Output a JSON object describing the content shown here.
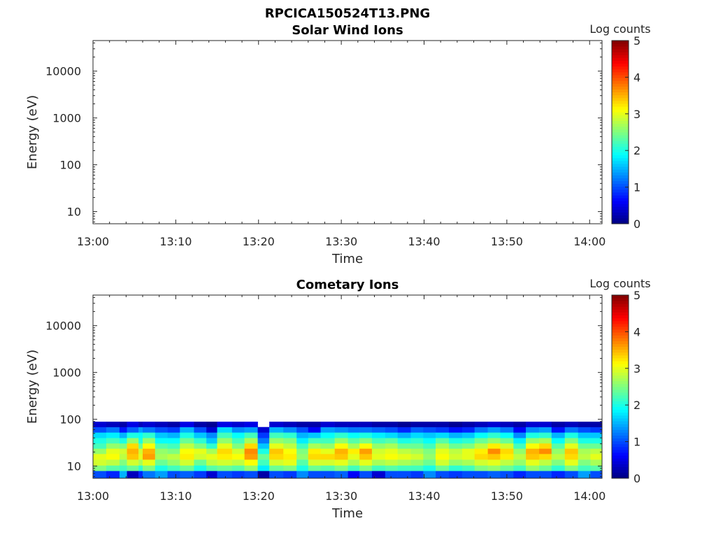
{
  "figure": {
    "title": "RPCICA150524T13.PNG"
  },
  "chart_data": [
    {
      "type": "heatmap",
      "title": "Solar Wind Ions",
      "xlabel": "Time",
      "ylabel": "Energy (eV)",
      "xticks": [
        "13:00",
        "13:10",
        "13:20",
        "13:30",
        "13:40",
        "13:50",
        "14:00"
      ],
      "xlim_minutes": [
        0,
        61.5
      ],
      "yscale": "log",
      "ylim": [
        5.5,
        45000
      ],
      "yticks": [
        10,
        100,
        1000,
        10000
      ],
      "yticklabels": [
        "10",
        "100",
        "1000",
        "10000"
      ],
      "colorbar": {
        "label": "Log counts",
        "range": [
          0,
          5
        ],
        "ticks": [
          "0",
          "1",
          "2",
          "3",
          "4",
          "5"
        ],
        "colormap": "jet"
      },
      "columns": []
    },
    {
      "type": "heatmap",
      "title": "Cometary Ions",
      "xlabel": "Time",
      "ylabel": "Energy (eV)",
      "xticks": [
        "13:00",
        "13:10",
        "13:20",
        "13:30",
        "13:40",
        "13:50",
        "14:00"
      ],
      "xlim_minutes": [
        0,
        61.5
      ],
      "yscale": "log",
      "ylim": [
        5.5,
        45000
      ],
      "yticks": [
        10,
        100,
        1000,
        10000
      ],
      "yticklabels": [
        "10",
        "100",
        "1000",
        "10000"
      ],
      "colorbar": {
        "label": "Log counts",
        "range": [
          0,
          5
        ],
        "ticks": [
          "0",
          "1",
          "2",
          "3",
          "4",
          "5"
        ],
        "colormap": "jet"
      },
      "energy_bins_eV": [
        7,
        9,
        12,
        16,
        21,
        27,
        35,
        46,
        60,
        78
      ],
      "columns": [
        {
          "t": 0.0,
          "levels": [
            1.0,
            2.5,
            2.9,
            3.0,
            2.6,
            2.2,
            2.0,
            1.7,
            1.0,
            0.4
          ]
        },
        {
          "t": 1.6,
          "levels": [
            0.8,
            2.3,
            2.8,
            3.1,
            3.0,
            2.6,
            2.2,
            1.8,
            1.2,
            0.3
          ]
        },
        {
          "t": 3.2,
          "levels": [
            1.5,
            2.2,
            2.5,
            2.8,
            2.9,
            2.5,
            2.0,
            1.5,
            0.7,
            0.2
          ]
        },
        {
          "t": 4.1,
          "levels": [
            0.3,
            2.4,
            2.9,
            3.4,
            3.5,
            3.3,
            2.6,
            2.0,
            1.1,
            0.5
          ]
        },
        {
          "t": 5.5,
          "levels": [
            0.8,
            2.1,
            2.7,
            3.0,
            2.9,
            2.4,
            2.0,
            1.9,
            1.4,
            0.3
          ]
        },
        {
          "t": 6.0,
          "levels": [
            1.2,
            2.5,
            3.0,
            3.6,
            3.5,
            3.1,
            2.6,
            2.1,
            1.2,
            0.4
          ]
        },
        {
          "t": 7.5,
          "levels": [
            1.4,
            2.0,
            2.4,
            2.7,
            2.6,
            2.3,
            1.9,
            1.6,
            1.0,
            0.3
          ]
        },
        {
          "t": 9.0,
          "levels": [
            1.0,
            2.2,
            2.6,
            2.8,
            2.5,
            2.2,
            1.9,
            1.5,
            0.9,
            0.2
          ]
        },
        {
          "t": 10.5,
          "levels": [
            1.1,
            2.4,
            2.9,
            3.2,
            3.1,
            2.8,
            2.4,
            2.0,
            1.5,
            0.5
          ]
        },
        {
          "t": 12.2,
          "levels": [
            0.9,
            2.0,
            2.4,
            2.9,
            3.0,
            2.5,
            2.1,
            1.6,
            1.0,
            0.2
          ]
        },
        {
          "t": 13.7,
          "levels": [
            0.4,
            2.3,
            2.8,
            3.0,
            2.7,
            2.1,
            1.6,
            1.3,
            0.4,
            0.1
          ]
        },
        {
          "t": 15.0,
          "levels": [
            1.0,
            2.4,
            2.9,
            3.2,
            3.3,
            3.0,
            2.6,
            2.2,
            1.7,
            0.5
          ]
        },
        {
          "t": 16.8,
          "levels": [
            0.9,
            2.3,
            2.8,
            3.1,
            2.9,
            2.5,
            2.2,
            1.9,
            1.3,
            0.4
          ]
        },
        {
          "t": 18.3,
          "levels": [
            1.0,
            2.6,
            3.1,
            3.6,
            3.7,
            3.3,
            2.7,
            2.2,
            1.4,
            0.5
          ]
        },
        {
          "t": 19.9,
          "levels": [
            0.2,
            1.8,
            2.2,
            2.4,
            2.0,
            1.6,
            1.2,
            0.9,
            0.4,
            -1
          ]
        },
        {
          "t": 21.3,
          "levels": [
            1.0,
            2.4,
            2.9,
            3.3,
            3.4,
            3.0,
            2.6,
            2.2,
            1.5,
            0.4
          ]
        },
        {
          "t": 23.0,
          "levels": [
            0.9,
            2.5,
            3.0,
            3.2,
            3.1,
            2.8,
            2.5,
            2.1,
            1.3,
            0.3
          ]
        },
        {
          "t": 24.6,
          "levels": [
            1.3,
            2.0,
            2.3,
            2.6,
            2.5,
            2.2,
            1.8,
            1.5,
            1.0,
            0.2
          ]
        },
        {
          "t": 26.0,
          "levels": [
            1.0,
            2.4,
            2.9,
            3.3,
            3.2,
            2.7,
            2.2,
            1.6,
            0.6,
            0.2
          ]
        },
        {
          "t": 27.5,
          "levels": [
            1.0,
            2.3,
            2.9,
            3.3,
            3.0,
            2.6,
            2.2,
            1.9,
            1.4,
            0.4
          ]
        },
        {
          "t": 29.2,
          "levels": [
            1.1,
            2.5,
            3.0,
            3.4,
            3.5,
            3.1,
            2.6,
            2.1,
            1.3,
            0.3
          ]
        },
        {
          "t": 30.8,
          "levels": [
            0.6,
            2.2,
            2.7,
            3.0,
            3.2,
            2.7,
            2.3,
            1.9,
            1.2,
            0.3
          ]
        },
        {
          "t": 32.2,
          "levels": [
            1.0,
            2.5,
            3.0,
            3.4,
            3.6,
            3.1,
            2.5,
            2.0,
            1.2,
            0.3
          ]
        },
        {
          "t": 33.7,
          "levels": [
            0.4,
            2.2,
            2.7,
            3.0,
            2.9,
            2.6,
            2.2,
            1.8,
            1.1,
            0.2
          ]
        },
        {
          "t": 35.3,
          "levels": [
            1.0,
            2.3,
            2.8,
            3.1,
            3.0,
            2.7,
            2.3,
            1.7,
            1.0,
            0.2
          ]
        },
        {
          "t": 36.8,
          "levels": [
            1.0,
            2.2,
            2.7,
            3.0,
            2.8,
            2.4,
            2.0,
            1.5,
            0.8,
            0.1
          ]
        },
        {
          "t": 38.4,
          "levels": [
            0.9,
            2.2,
            2.6,
            2.9,
            2.7,
            2.4,
            2.1,
            1.7,
            1.1,
            0.2
          ]
        },
        {
          "t": 39.9,
          "levels": [
            1.3,
            2.0,
            2.4,
            2.6,
            2.5,
            2.2,
            1.9,
            1.6,
            1.0,
            0.2
          ]
        },
        {
          "t": 41.4,
          "levels": [
            1.0,
            2.4,
            2.9,
            3.1,
            3.0,
            2.7,
            2.3,
            1.7,
            0.9,
            0.2
          ]
        },
        {
          "t": 43.0,
          "levels": [
            0.9,
            2.1,
            2.6,
            2.9,
            2.8,
            2.4,
            2.0,
            1.5,
            0.7,
            0.1
          ]
        },
        {
          "t": 44.6,
          "levels": [
            1.0,
            2.2,
            2.7,
            3.0,
            3.0,
            2.5,
            2.1,
            1.6,
            0.8,
            0.2
          ]
        },
        {
          "t": 46.1,
          "levels": [
            1.0,
            2.5,
            2.9,
            3.3,
            3.2,
            2.8,
            2.4,
            1.9,
            1.2,
            0.3
          ]
        },
        {
          "t": 47.7,
          "levels": [
            1.1,
            2.6,
            3.0,
            3.4,
            3.7,
            3.2,
            2.6,
            2.1,
            1.4,
            0.4
          ]
        },
        {
          "t": 49.2,
          "levels": [
            1.0,
            2.4,
            2.8,
            3.2,
            3.3,
            2.9,
            2.4,
            1.9,
            1.2,
            0.3
          ]
        },
        {
          "t": 50.8,
          "levels": [
            0.8,
            2.2,
            2.6,
            2.8,
            2.6,
            2.2,
            1.8,
            1.3,
            0.6,
            0.2
          ]
        },
        {
          "t": 52.3,
          "levels": [
            1.0,
            2.6,
            3.0,
            3.4,
            3.5,
            3.1,
            2.6,
            2.0,
            1.3,
            0.4
          ]
        },
        {
          "t": 53.9,
          "levels": [
            1.0,
            2.4,
            2.8,
            3.3,
            3.7,
            3.3,
            2.7,
            2.1,
            1.4,
            0.4
          ]
        },
        {
          "t": 55.4,
          "levels": [
            0.8,
            2.1,
            2.5,
            2.8,
            2.6,
            2.3,
            1.9,
            1.5,
            0.7,
            0.2
          ]
        },
        {
          "t": 57.0,
          "levels": [
            1.0,
            2.5,
            3.0,
            3.3,
            3.4,
            3.0,
            2.5,
            2.0,
            1.2,
            0.3
          ]
        },
        {
          "t": 58.6,
          "levels": [
            1.4,
            2.2,
            2.5,
            2.8,
            2.7,
            2.4,
            2.0,
            1.6,
            1.0,
            0.2
          ]
        },
        {
          "t": 60.1,
          "levels": [
            1.0,
            2.3,
            2.7,
            3.0,
            2.8,
            2.4,
            2.0,
            1.6,
            0.9,
            0.2
          ]
        }
      ]
    }
  ]
}
